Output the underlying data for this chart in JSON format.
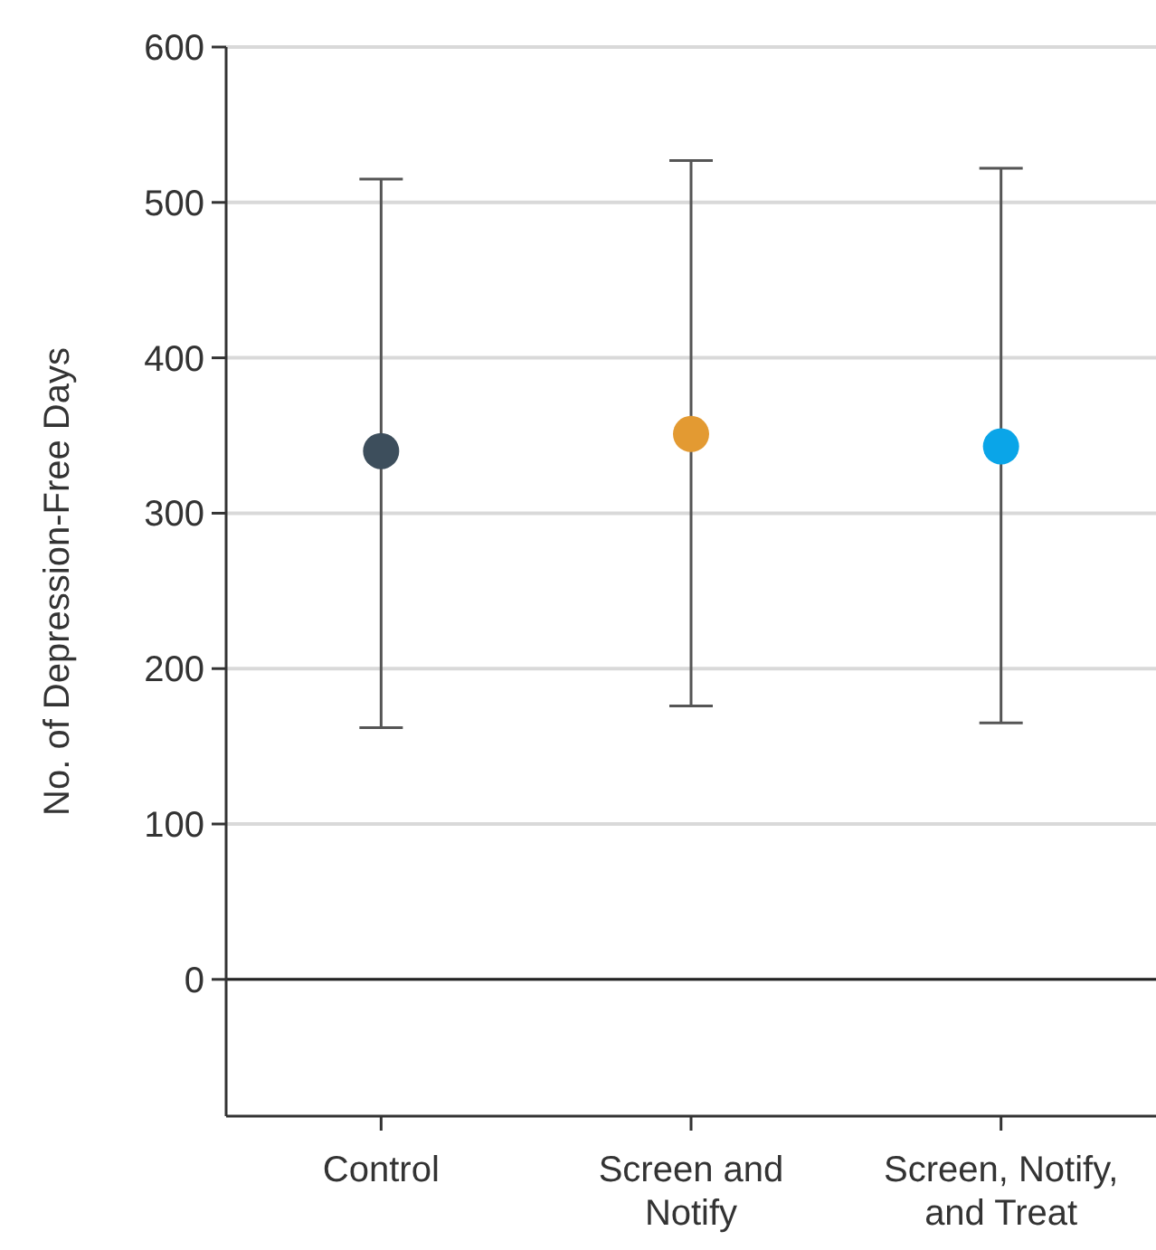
{
  "chart_data": {
    "type": "scatter",
    "ylabel": "No. of Depression-Free Days",
    "categories": [
      "Control",
      "Screen and Notify",
      "Screen, Notify, and Treat"
    ],
    "values": [
      340,
      351,
      343
    ],
    "colors": [
      "#3d4e5c",
      "#e39a32",
      "#0aa5e8"
    ],
    "errors": [
      [
        162,
        515
      ],
      [
        176,
        527
      ],
      [
        165,
        522
      ]
    ],
    "ylim": [
      -88,
      600
    ],
    "yticks": [
      0,
      100,
      200,
      300,
      400,
      500,
      600
    ],
    "grid": "y",
    "marker": "circle",
    "ref_lines": [
      {
        "axis": "y",
        "value": 0,
        "color": "#222222"
      }
    ]
  }
}
